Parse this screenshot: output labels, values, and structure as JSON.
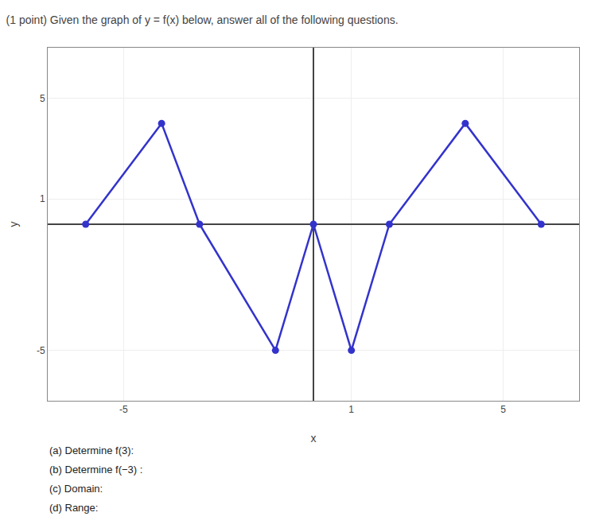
{
  "chart_data": {
    "type": "line",
    "title": "(1 point) Given the graph of y = f(x) below, answer all of the following questions.",
    "x": [
      -6,
      -4,
      -3,
      -1,
      0,
      1,
      2,
      4,
      6
    ],
    "values": [
      0,
      4,
      0,
      -5,
      0,
      -5,
      0,
      4,
      0
    ],
    "color": "#3333cc",
    "marker": "circle",
    "line_style": "solid",
    "xlabel": "x",
    "ylabel": "y",
    "xlim": [
      -7,
      7
    ],
    "ylim": [
      -7,
      7
    ],
    "xticks": [
      -5,
      1,
      5
    ],
    "yticks": [
      -5,
      1,
      5
    ],
    "grid": true,
    "annotations": [
      "(a) Determine f(3):",
      "(b) Determine f(−3) :",
      "(c) Domain:",
      "(d) Range:"
    ]
  }
}
